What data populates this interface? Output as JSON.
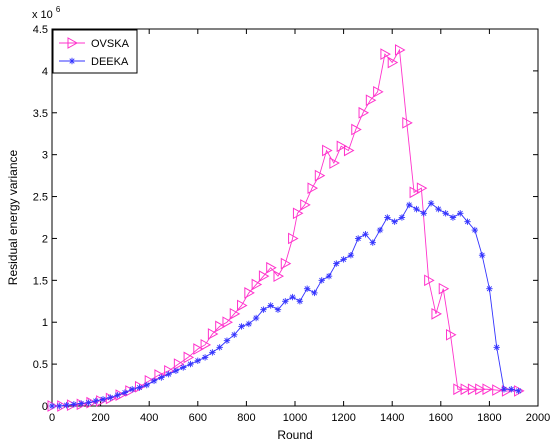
{
  "chart_data": {
    "type": "line",
    "xlabel": "Round",
    "ylabel": "Residual energy variance",
    "xlim": [
      0,
      2000
    ],
    "ylim": [
      0,
      4500000
    ],
    "y_multiplier_text": "x 10",
    "y_multiplier_exp": "6",
    "x_ticks": [
      0,
      200,
      400,
      600,
      800,
      1000,
      1200,
      1400,
      1600,
      1800,
      2000
    ],
    "y_ticks": [
      0,
      500000,
      1000000,
      1500000,
      2000000,
      2500000,
      3000000,
      3500000,
      4000000,
      4500000
    ],
    "y_tick_labels": [
      "0",
      "0.5",
      "1",
      "1.5",
      "2",
      "2.5",
      "3",
      "3.5",
      "4",
      "4.5"
    ],
    "grid": false,
    "legend_position": "top-left",
    "series": [
      {
        "name": "OVSKA",
        "color": "#ff33cc",
        "marker": "triangle-right",
        "x": [
          0,
          40,
          80,
          120,
          160,
          200,
          240,
          280,
          320,
          360,
          400,
          440,
          480,
          520,
          560,
          600,
          630,
          660,
          690,
          720,
          750,
          780,
          810,
          840,
          870,
          900,
          930,
          960,
          990,
          1010,
          1040,
          1070,
          1100,
          1130,
          1160,
          1190,
          1220,
          1250,
          1280,
          1310,
          1340,
          1370,
          1400,
          1430,
          1460,
          1490,
          1520,
          1550,
          1580,
          1610,
          1640,
          1670,
          1700,
          1730,
          1760,
          1790,
          1830,
          1870,
          1920
        ],
        "y": [
          0,
          0,
          10000,
          20000,
          40000,
          60000,
          90000,
          130000,
          180000,
          230000,
          300000,
          370000,
          420000,
          500000,
          580000,
          680000,
          730000,
          860000,
          950000,
          1000000,
          1100000,
          1200000,
          1350000,
          1450000,
          1550000,
          1650000,
          1550000,
          1700000,
          2000000,
          2300000,
          2400000,
          2600000,
          2750000,
          3050000,
          2900000,
          3100000,
          3050000,
          3300000,
          3500000,
          3650000,
          3750000,
          4200000,
          4100000,
          4250000,
          3380000,
          2550000,
          2600000,
          1500000,
          1100000,
          1400000,
          850000,
          200000,
          200000,
          200000,
          200000,
          200000,
          190000,
          180000,
          180000
        ]
      },
      {
        "name": "DEEKA",
        "color": "#3333ff",
        "marker": "star",
        "x": [
          0,
          30,
          60,
          90,
          120,
          150,
          180,
          210,
          240,
          270,
          300,
          330,
          360,
          390,
          420,
          450,
          480,
          510,
          540,
          570,
          600,
          630,
          660,
          690,
          720,
          750,
          780,
          810,
          840,
          870,
          900,
          930,
          960,
          990,
          1020,
          1050,
          1080,
          1110,
          1140,
          1170,
          1200,
          1230,
          1260,
          1290,
          1320,
          1350,
          1380,
          1410,
          1440,
          1470,
          1500,
          1530,
          1560,
          1590,
          1620,
          1650,
          1680,
          1710,
          1740,
          1770,
          1800,
          1830,
          1860,
          1890,
          1920
        ],
        "y": [
          0,
          0,
          10000,
          20000,
          30000,
          40000,
          60000,
          80000,
          100000,
          130000,
          160000,
          200000,
          220000,
          250000,
          300000,
          340000,
          380000,
          420000,
          460000,
          500000,
          540000,
          580000,
          640000,
          700000,
          780000,
          850000,
          950000,
          980000,
          1050000,
          1150000,
          1200000,
          1150000,
          1250000,
          1300000,
          1250000,
          1400000,
          1350000,
          1500000,
          1550000,
          1700000,
          1750000,
          1800000,
          2000000,
          2050000,
          1950000,
          2100000,
          2250000,
          2200000,
          2250000,
          2400000,
          2350000,
          2300000,
          2420000,
          2350000,
          2300000,
          2250000,
          2300000,
          2200000,
          2100000,
          1800000,
          1400000,
          700000,
          200000,
          200000,
          180000
        ]
      }
    ]
  }
}
